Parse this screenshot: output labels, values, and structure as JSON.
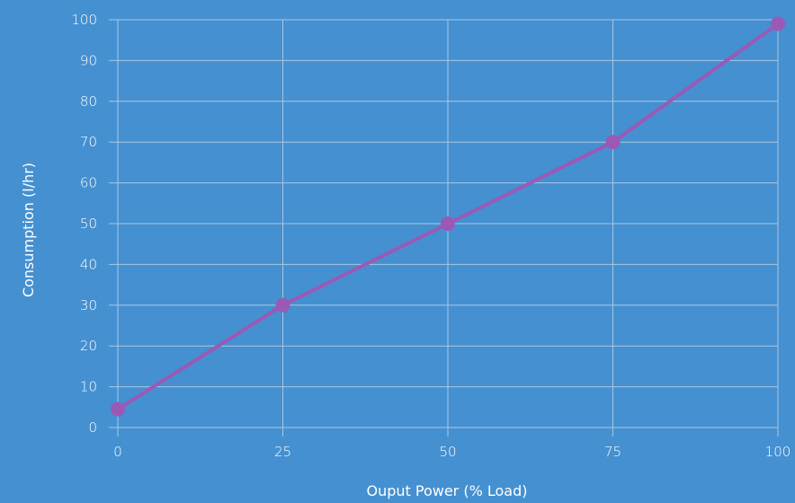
{
  "colors": {
    "background": "#4590d0",
    "grid": "#a9c7e2",
    "line": "#9b59b6",
    "point": "#9b59b6",
    "text": "#ffffff"
  },
  "chart_data": {
    "type": "line",
    "title": "",
    "xlabel": "Ouput Power (% Load)",
    "ylabel": "Consumption (l/hr)",
    "x": [
      0,
      25,
      50,
      75,
      100
    ],
    "series": [
      {
        "values": [
          4.5,
          30,
          50,
          70,
          99
        ]
      }
    ],
    "xlim": [
      0,
      100
    ],
    "ylim": [
      0,
      100
    ],
    "xticks": [
      "0",
      "25",
      "50",
      "75",
      "100"
    ],
    "yticks": [
      "0",
      "10",
      "20",
      "30",
      "40",
      "50",
      "60",
      "70",
      "80",
      "90",
      "100"
    ],
    "grid": true,
    "legend": "none"
  }
}
